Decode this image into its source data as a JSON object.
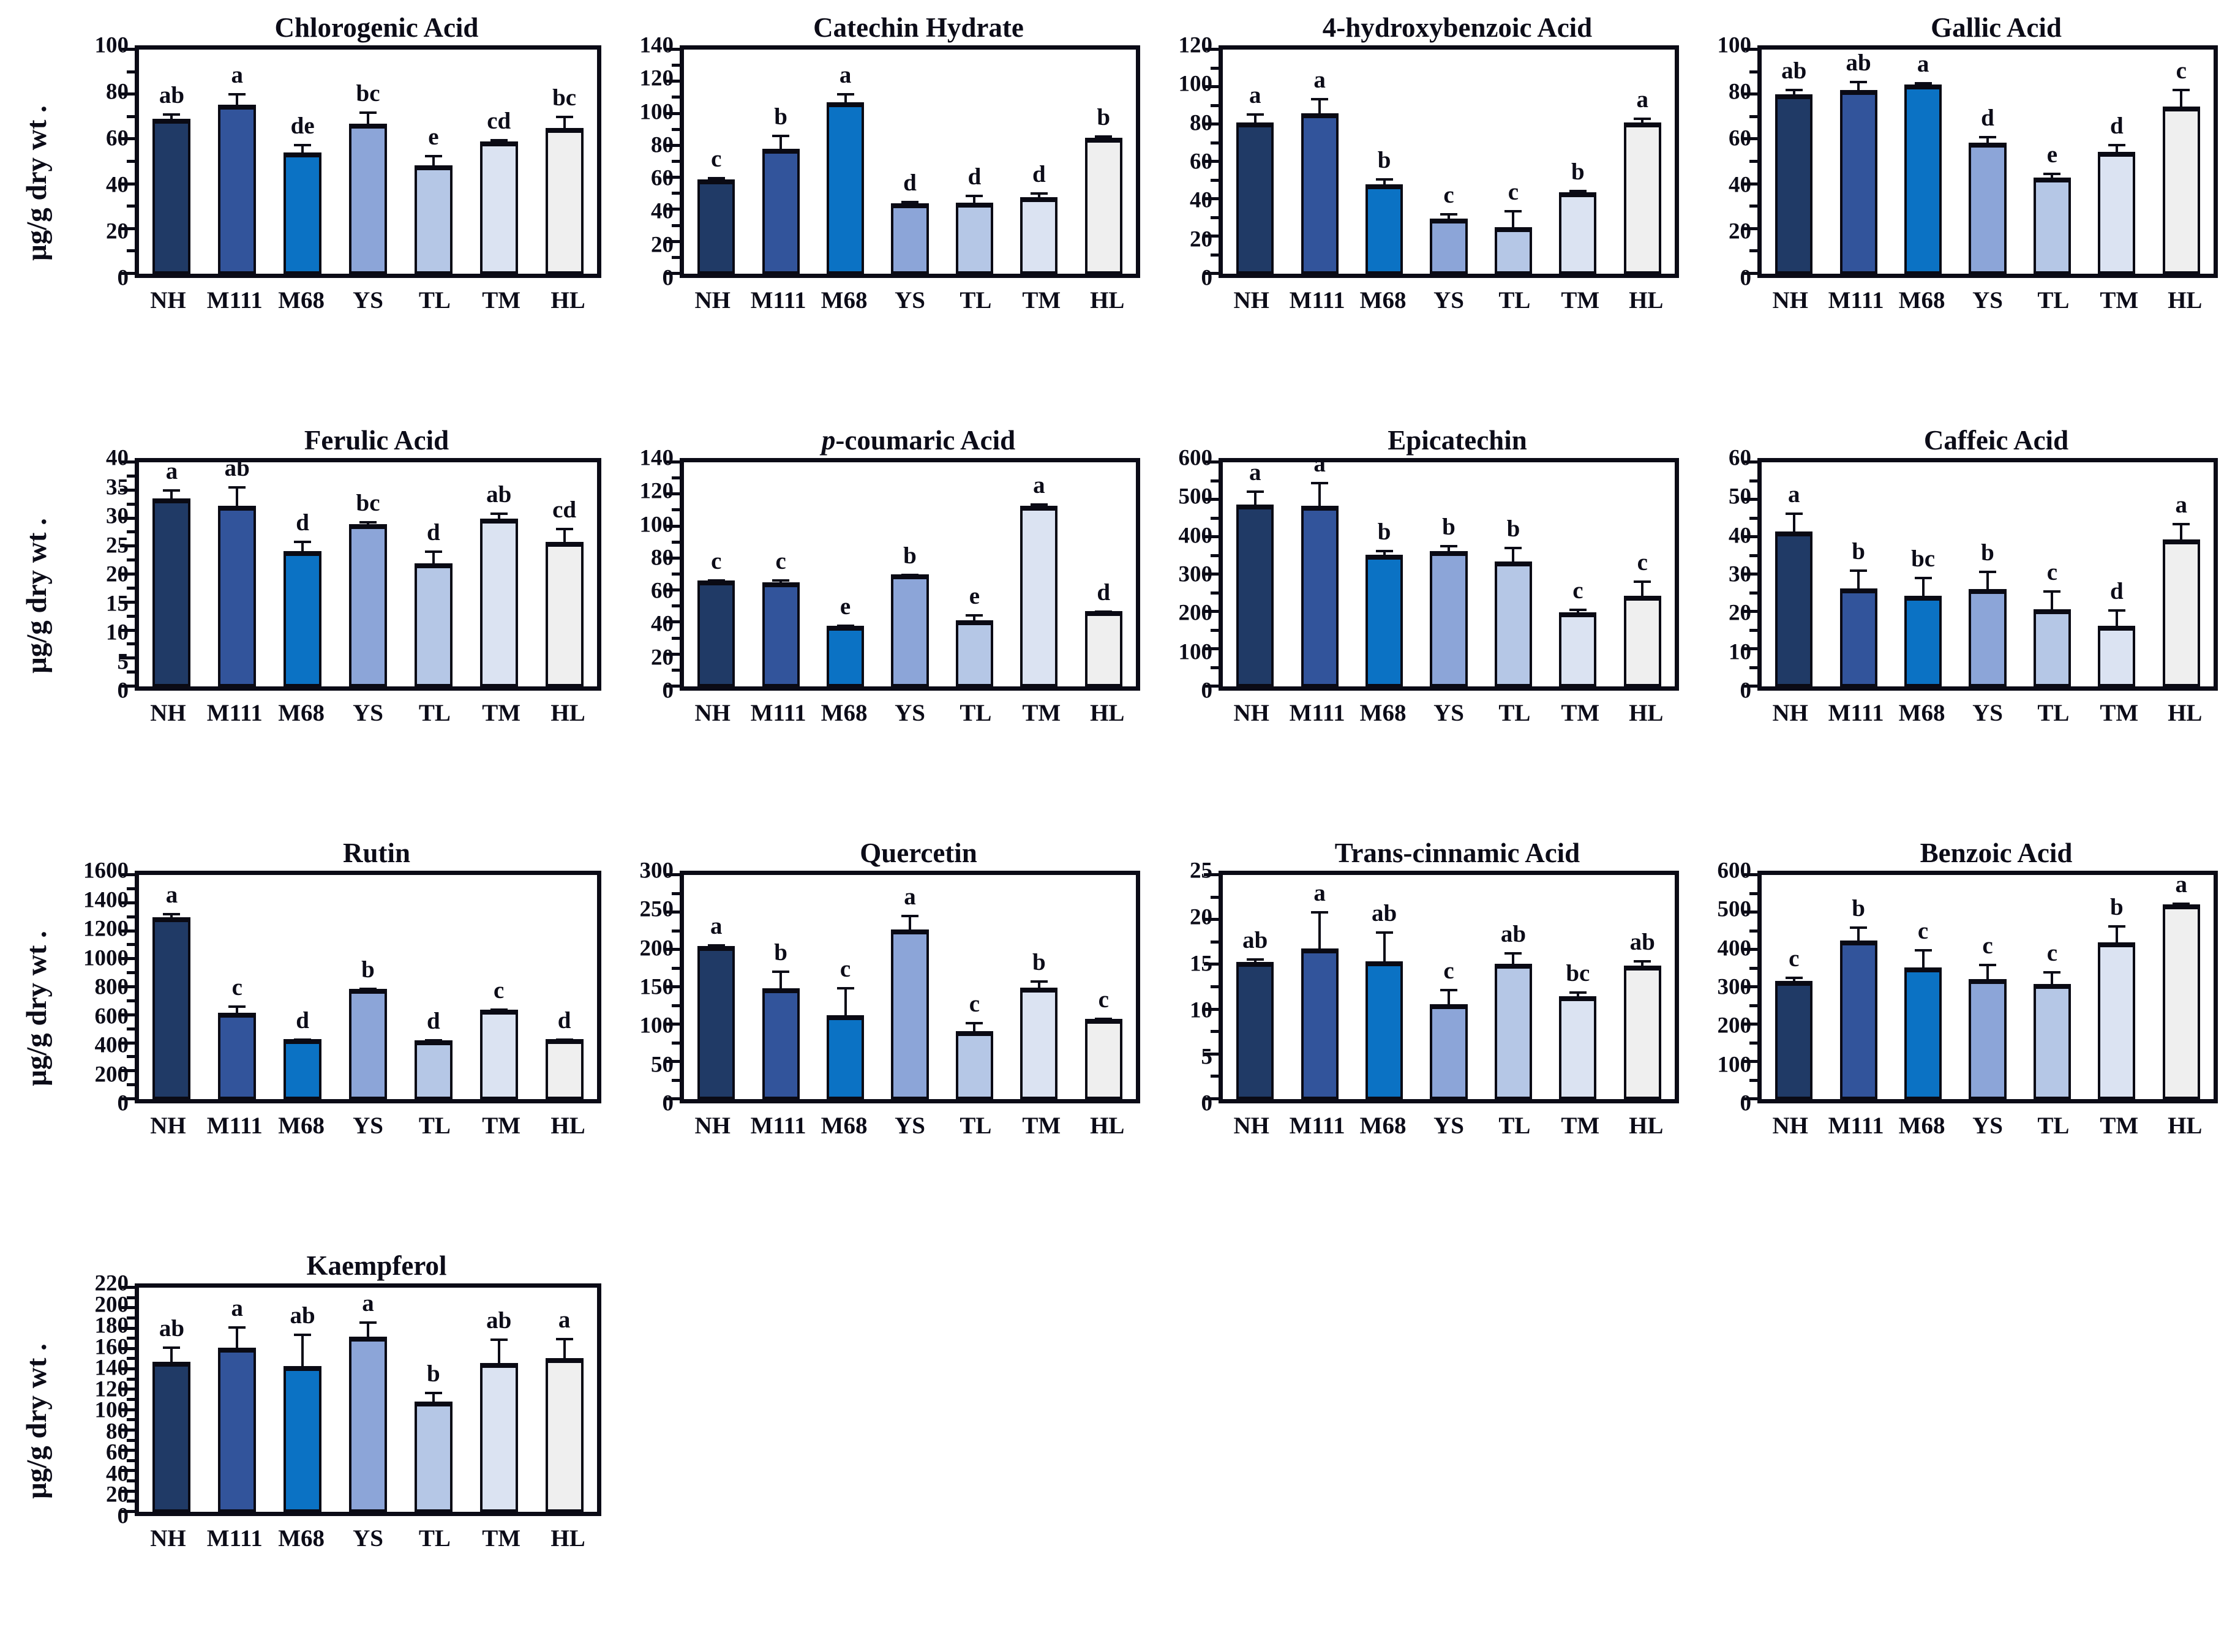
{
  "figure": {
    "y_axis_label": "μg/g dry wt .",
    "categories": [
      "NH",
      "M111",
      "M68",
      "YS",
      "TL",
      "TM",
      "HL"
    ],
    "bar_colors": [
      "#203a66",
      "#32549b",
      "#0b72c4",
      "#8ca5d8",
      "#b5c7e6",
      "#dbe3f2",
      "#efefef"
    ],
    "bar_border_color": "#0a0a14",
    "text_color": "#0c0c18"
  },
  "chart_data": [
    {
      "type": "bar",
      "title": "Chlorogenic Acid",
      "italic_prefix_len": 0,
      "show_ylabel": true,
      "ylabel": "μg/g dry wt .",
      "ylim": [
        0,
        100
      ],
      "ytick_step": 20,
      "categories": [
        "NH",
        "M111",
        "M68",
        "YS",
        "TL",
        "TM",
        "HL"
      ],
      "values": [
        69,
        75.5,
        54,
        67,
        48.5,
        59,
        65
      ],
      "errors": [
        2.5,
        5,
        4,
        5.5,
        4.5,
        1,
        5.5
      ],
      "letters": [
        "ab",
        "a",
        "de",
        "bc",
        "e",
        "cd",
        "bc"
      ]
    },
    {
      "type": "bar",
      "title": "Catechin Hydrate",
      "italic_prefix_len": 0,
      "show_ylabel": false,
      "ylim": [
        0,
        140
      ],
      "ytick_step": 20,
      "categories": [
        "NH",
        "M111",
        "M68",
        "YS",
        "TL",
        "TM",
        "HL"
      ],
      "values": [
        59,
        78,
        107,
        44,
        44.5,
        48,
        85
      ],
      "errors": [
        1.5,
        9,
        6,
        1.5,
        5,
        3,
        1.5
      ],
      "letters": [
        "c",
        "b",
        "a",
        "d",
        "d",
        "d",
        "b"
      ]
    },
    {
      "type": "bar",
      "title": "4-hydroxybenzoic Acid",
      "italic_prefix_len": 0,
      "show_ylabel": false,
      "ylim": [
        0,
        120
      ],
      "ytick_step": 20,
      "categories": [
        "NH",
        "M111",
        "M68",
        "YS",
        "TL",
        "TM",
        "HL"
      ],
      "values": [
        81,
        86,
        48,
        29.5,
        25,
        43.5,
        81
      ],
      "errors": [
        5,
        8,
        3,
        3,
        9,
        1.5,
        2.5
      ],
      "letters": [
        "a",
        "a",
        "b",
        "c",
        "c",
        "b",
        "a"
      ]
    },
    {
      "type": "bar",
      "title": "Gallic Acid",
      "italic_prefix_len": 0,
      "show_ylabel": false,
      "ylim": [
        0,
        100
      ],
      "ytick_step": 20,
      "categories": [
        "NH",
        "M111",
        "M68",
        "YS",
        "TL",
        "TM",
        "HL"
      ],
      "values": [
        80,
        82,
        84.5,
        58.5,
        43,
        54.5,
        74.5
      ],
      "errors": [
        2.5,
        4,
        1,
        3,
        2,
        3.5,
        8
      ],
      "letters": [
        "ab",
        "ab",
        "a",
        "d",
        "e",
        "d",
        "c"
      ]
    },
    {
      "type": "bar",
      "title": "Ferulic Acid",
      "italic_prefix_len": 0,
      "show_ylabel": true,
      "ylabel": "μg/g dry wt .",
      "ylim": [
        0,
        40
      ],
      "ytick_step": 5,
      "categories": [
        "NH",
        "M111",
        "M68",
        "YS",
        "TL",
        "TM",
        "HL"
      ],
      "values": [
        33.5,
        32.2,
        24.2,
        29,
        22,
        30,
        25.8
      ],
      "errors": [
        1.7,
        3.5,
        1.8,
        0.5,
        2.3,
        1,
        2.5
      ],
      "letters": [
        "a",
        "ab",
        "d",
        "bc",
        "d",
        "ab",
        "cd"
      ]
    },
    {
      "type": "bar",
      "title": "p-coumaric Acid",
      "italic_prefix_len": 1,
      "show_ylabel": false,
      "ylim": [
        0,
        140
      ],
      "ytick_step": 20,
      "categories": [
        "NH",
        "M111",
        "M68",
        "YS",
        "TL",
        "TM",
        "HL"
      ],
      "values": [
        66,
        65,
        38,
        70,
        41.5,
        113,
        47
      ],
      "errors": [
        1,
        2,
        0.5,
        0.5,
        3.5,
        1.5,
        0.5
      ],
      "letters": [
        "c",
        "c",
        "e",
        "b",
        "e",
        "a",
        "d"
      ]
    },
    {
      "type": "bar",
      "title": "Epicatechin",
      "italic_prefix_len": 0,
      "show_ylabel": false,
      "ylim": [
        0,
        600
      ],
      "ytick_step": 100,
      "categories": [
        "NH",
        "M111",
        "M68",
        "YS",
        "TL",
        "TM",
        "HL"
      ],
      "values": [
        487,
        483,
        352,
        363,
        335,
        198,
        242
      ],
      "errors": [
        38,
        65,
        13,
        15,
        38,
        10,
        42
      ],
      "letters": [
        "a",
        "a",
        "b",
        "b",
        "b",
        "c",
        "c"
      ]
    },
    {
      "type": "bar",
      "title": "Caffeic Acid",
      "italic_prefix_len": 0,
      "show_ylabel": false,
      "ylim": [
        0,
        60
      ],
      "ytick_step": 10,
      "categories": [
        "NH",
        "M111",
        "M68",
        "YS",
        "TL",
        "TM",
        "HL"
      ],
      "values": [
        41.5,
        26.3,
        24.3,
        26,
        20.7,
        16.2,
        39.3
      ],
      "errors": [
        5,
        5,
        5,
        5,
        5,
        4.5,
        4.5
      ],
      "letters": [
        "a",
        "b",
        "bc",
        "b",
        "c",
        "d",
        "a"
      ]
    },
    {
      "type": "bar",
      "title": "Rutin",
      "italic_prefix_len": 0,
      "show_ylabel": true,
      "ylabel": "μg/g dry wt .",
      "ylim": [
        0,
        1600
      ],
      "ytick_step": 200,
      "categories": [
        "NH",
        "M111",
        "M68",
        "YS",
        "TL",
        "TM",
        "HL"
      ],
      "values": [
        1300,
        615,
        430,
        785,
        420,
        640,
        430
      ],
      "errors": [
        30,
        55,
        5,
        10,
        10,
        8,
        5
      ],
      "letters": [
        "a",
        "c",
        "d",
        "b",
        "d",
        "c",
        "d"
      ]
    },
    {
      "type": "bar",
      "title": "Quercetin",
      "italic_prefix_len": 0,
      "show_ylabel": false,
      "ylim": [
        0,
        300
      ],
      "ytick_step": 50,
      "categories": [
        "NH",
        "M111",
        "M68",
        "YS",
        "TL",
        "TM",
        "HL"
      ],
      "values": [
        205,
        148,
        112,
        227,
        91,
        149,
        107
      ],
      "errors": [
        2,
        24,
        38,
        20,
        12,
        10,
        2
      ],
      "letters": [
        "a",
        "b",
        "c",
        "a",
        "c",
        "b",
        "c"
      ]
    },
    {
      "type": "bar",
      "title": "Trans-cinnamic Acid",
      "italic_prefix_len": 0,
      "show_ylabel": false,
      "ylim": [
        0,
        25
      ],
      "ytick_step": 5,
      "categories": [
        "NH",
        "M111",
        "M68",
        "YS",
        "TL",
        "TM",
        "HL"
      ],
      "values": [
        15.3,
        16.8,
        15.4,
        10.6,
        15.1,
        11.5,
        14.9
      ],
      "errors": [
        0.4,
        4.2,
        3.3,
        1.7,
        1.3,
        0.5,
        0.6
      ],
      "letters": [
        "ab",
        "a",
        "ab",
        "c",
        "ab",
        "bc",
        "ab"
      ]
    },
    {
      "type": "bar",
      "title": "Benzoic Acid",
      "italic_prefix_len": 0,
      "show_ylabel": false,
      "ylim": [
        0,
        600
      ],
      "ytick_step": 100,
      "categories": [
        "NH",
        "M111",
        "M68",
        "YS",
        "TL",
        "TM",
        "HL"
      ],
      "values": [
        316,
        425,
        352,
        322,
        308,
        420,
        522
      ],
      "errors": [
        12,
        37,
        50,
        40,
        35,
        45,
        5
      ],
      "letters": [
        "c",
        "b",
        "c",
        "c",
        "c",
        "b",
        "a"
      ]
    },
    {
      "type": "bar",
      "title": "Kaempferol",
      "italic_prefix_len": 0,
      "show_ylabel": true,
      "ylabel": "μg/g dry wt .",
      "ylim": [
        0,
        220
      ],
      "ytick_step": 20,
      "categories": [
        "NH",
        "M111",
        "M68",
        "YS",
        "TL",
        "TM",
        "HL"
      ],
      "values": [
        147,
        161,
        143,
        172,
        108,
        146,
        151
      ],
      "errors": [
        15,
        21,
        32,
        15,
        10,
        24,
        20
      ],
      "letters": [
        "ab",
        "a",
        "ab",
        "a",
        "b",
        "ab",
        "a"
      ]
    }
  ]
}
